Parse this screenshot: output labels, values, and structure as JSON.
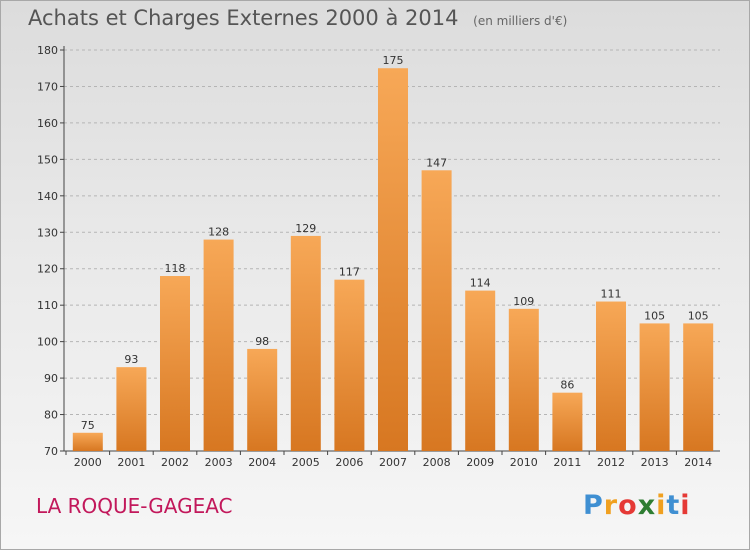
{
  "header": {
    "title": "Achats et Charges Externes 2000 à 2014",
    "unit": "(en milliers d'€)"
  },
  "footer": {
    "commune": "LA ROQUE-GAGEAC",
    "logo": {
      "letters": [
        "P",
        "r",
        "o",
        "x",
        "i",
        "t",
        "i"
      ],
      "colors": [
        "#3f8fd2",
        "#f0a020",
        "#e53935",
        "#2e7d32",
        "#f0a020",
        "#3f8fd2",
        "#e53935"
      ]
    }
  },
  "colors": {
    "bar_light": "#f7a857",
    "bar_dark": "#d77721",
    "commune": "#c2185b"
  },
  "chart_data": {
    "type": "bar",
    "title": "Achats et Charges Externes 2000 à 2014",
    "unit": "(en milliers d'€)",
    "categories": [
      "2000",
      "2001",
      "2002",
      "2003",
      "2004",
      "2005",
      "2006",
      "2007",
      "2008",
      "2009",
      "2010",
      "2011",
      "2012",
      "2013",
      "2014"
    ],
    "values": [
      75,
      93,
      118,
      128,
      98,
      129,
      117,
      175,
      147,
      114,
      109,
      86,
      111,
      105,
      105
    ],
    "ylim": [
      70,
      180
    ],
    "yticks": [
      70,
      80,
      90,
      100,
      110,
      120,
      130,
      140,
      150,
      160,
      170,
      180
    ],
    "grid": true,
    "legend": "none"
  }
}
